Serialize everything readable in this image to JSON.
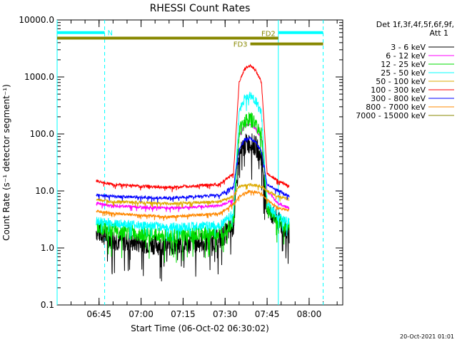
{
  "chart_data": {
    "type": "line",
    "title": "RHESSI Count Rates",
    "xlabel": "Start Time (06-Oct-02 06:30:02)",
    "ylabel": "Count Rate (s⁻¹ detector segment⁻¹)",
    "y_scale": "log",
    "ylim": [
      0.1,
      10000
    ],
    "y_ticks": [
      {
        "value": 0.1,
        "label": "0.1"
      },
      {
        "value": 1,
        "label": "1.0"
      },
      {
        "value": 10,
        "label": "10.0"
      },
      {
        "value": 100,
        "label": "100.0"
      },
      {
        "value": 1000,
        "label": "1000.0"
      },
      {
        "value": 10000,
        "label": "10000.0"
      }
    ],
    "x_range": [
      "06:30:02",
      "08:12:00"
    ],
    "x_ticks": [
      "06:45",
      "07:00",
      "07:15",
      "07:30",
      "07:45",
      "08:00"
    ],
    "legend": {
      "placement": "right",
      "title_line1": "Det 1f,3f,4f,5f,6f,9f,",
      "title_line2": "Att 1"
    },
    "series": [
      {
        "name": "3 - 6 keV",
        "color": "#000000",
        "values": [
          {
            "x": "06:44:00",
            "y": 2.0
          },
          {
            "x": "06:50:00",
            "y": 1.4
          },
          {
            "x": "07:10:00",
            "y": 1.1
          },
          {
            "x": "07:28:00",
            "y": 1.4
          },
          {
            "x": "07:33:00",
            "y": 2.5
          },
          {
            "x": "07:35:00",
            "y": 40
          },
          {
            "x": "07:37:00",
            "y": 65
          },
          {
            "x": "07:39:00",
            "y": 70
          },
          {
            "x": "07:41:00",
            "y": 60
          },
          {
            "x": "07:43:00",
            "y": 40
          },
          {
            "x": "07:45:00",
            "y": 5
          },
          {
            "x": "07:49:00",
            "y": 2.8
          },
          {
            "x": "07:53:00",
            "y": 1.8
          }
        ]
      },
      {
        "name": "6 - 12 keV",
        "color": "#ff00ff",
        "values": [
          {
            "x": "06:44:00",
            "y": 6.0
          },
          {
            "x": "06:50:00",
            "y": 5.5
          },
          {
            "x": "07:10:00",
            "y": 5.0
          },
          {
            "x": "07:28:00",
            "y": 5.5
          },
          {
            "x": "07:33:00",
            "y": 7
          },
          {
            "x": "07:35:00",
            "y": 95
          },
          {
            "x": "07:37:00",
            "y": 140
          },
          {
            "x": "07:39:00",
            "y": 150
          },
          {
            "x": "07:41:00",
            "y": 120
          },
          {
            "x": "07:43:00",
            "y": 80
          },
          {
            "x": "07:45:00",
            "y": 10
          },
          {
            "x": "07:49:00",
            "y": 6
          },
          {
            "x": "07:53:00",
            "y": 5
          }
        ]
      },
      {
        "name": "12 - 25 keV",
        "color": "#00dd00",
        "values": [
          {
            "x": "06:44:00",
            "y": 2.5
          },
          {
            "x": "06:50:00",
            "y": 2.0
          },
          {
            "x": "07:10:00",
            "y": 1.6
          },
          {
            "x": "07:28:00",
            "y": 1.8
          },
          {
            "x": "07:33:00",
            "y": 3
          },
          {
            "x": "07:35:00",
            "y": 110
          },
          {
            "x": "07:37:00",
            "y": 170
          },
          {
            "x": "07:39:00",
            "y": 180
          },
          {
            "x": "07:41:00",
            "y": 150
          },
          {
            "x": "07:43:00",
            "y": 100
          },
          {
            "x": "07:45:00",
            "y": 5
          },
          {
            "x": "07:49:00",
            "y": 3
          },
          {
            "x": "07:53:00",
            "y": 2.3
          }
        ]
      },
      {
        "name": "25 - 50 keV",
        "color": "#00ffff",
        "values": [
          {
            "x": "06:44:00",
            "y": 3.0
          },
          {
            "x": "06:50:00",
            "y": 2.7
          },
          {
            "x": "07:10:00",
            "y": 2.3
          },
          {
            "x": "07:28:00",
            "y": 2.5
          },
          {
            "x": "07:33:00",
            "y": 4
          },
          {
            "x": "07:35:00",
            "y": 250
          },
          {
            "x": "07:37:00",
            "y": 420
          },
          {
            "x": "07:39:00",
            "y": 470
          },
          {
            "x": "07:41:00",
            "y": 380
          },
          {
            "x": "07:43:00",
            "y": 220
          },
          {
            "x": "07:45:00",
            "y": 6
          },
          {
            "x": "07:49:00",
            "y": 3.5
          },
          {
            "x": "07:53:00",
            "y": 2.8
          }
        ]
      },
      {
        "name": "50 - 100 keV",
        "color": "#ddaa00",
        "values": [
          {
            "x": "06:44:00",
            "y": 7.0
          },
          {
            "x": "06:50:00",
            "y": 6.5
          },
          {
            "x": "07:10:00",
            "y": 6.0
          },
          {
            "x": "07:28:00",
            "y": 6.5
          },
          {
            "x": "07:33:00",
            "y": 8
          },
          {
            "x": "07:35:00",
            "y": 12
          },
          {
            "x": "07:39:00",
            "y": 13
          },
          {
            "x": "07:43:00",
            "y": 12
          },
          {
            "x": "07:45:00",
            "y": 10
          },
          {
            "x": "07:49:00",
            "y": 8
          },
          {
            "x": "07:53:00",
            "y": 7
          }
        ]
      },
      {
        "name": "100 - 300 keV",
        "color": "#ff0000",
        "values": [
          {
            "x": "06:44:00",
            "y": 15.0
          },
          {
            "x": "06:50:00",
            "y": 13.0
          },
          {
            "x": "07:10:00",
            "y": 11.5
          },
          {
            "x": "07:28:00",
            "y": 13
          },
          {
            "x": "07:33:00",
            "y": 20
          },
          {
            "x": "07:35:00",
            "y": 800
          },
          {
            "x": "07:37:00",
            "y": 1400
          },
          {
            "x": "07:39:00",
            "y": 1600
          },
          {
            "x": "07:41:00",
            "y": 1300
          },
          {
            "x": "07:43:00",
            "y": 800
          },
          {
            "x": "07:45:00",
            "y": 20
          },
          {
            "x": "07:49:00",
            "y": 15
          },
          {
            "x": "07:53:00",
            "y": 12
          }
        ]
      },
      {
        "name": "300 - 800 keV",
        "color": "#0000ff",
        "values": [
          {
            "x": "06:44:00",
            "y": 8.5
          },
          {
            "x": "06:50:00",
            "y": 8.0
          },
          {
            "x": "07:10:00",
            "y": 7.5
          },
          {
            "x": "07:28:00",
            "y": 8.5
          },
          {
            "x": "07:33:00",
            "y": 12
          },
          {
            "x": "07:35:00",
            "y": 55
          },
          {
            "x": "07:37:00",
            "y": 80
          },
          {
            "x": "07:39:00",
            "y": 85
          },
          {
            "x": "07:41:00",
            "y": 70
          },
          {
            "x": "07:43:00",
            "y": 50
          },
          {
            "x": "07:45:00",
            "y": 13
          },
          {
            "x": "07:49:00",
            "y": 10
          },
          {
            "x": "07:53:00",
            "y": 8
          }
        ]
      },
      {
        "name": "800 - 7000 keV",
        "color": "#ff8800",
        "values": [
          {
            "x": "06:44:00",
            "y": 4.5
          },
          {
            "x": "06:50:00",
            "y": 4.0
          },
          {
            "x": "07:10:00",
            "y": 3.5
          },
          {
            "x": "07:28:00",
            "y": 4
          },
          {
            "x": "07:33:00",
            "y": 6
          },
          {
            "x": "07:35:00",
            "y": 8
          },
          {
            "x": "07:39:00",
            "y": 10
          },
          {
            "x": "07:43:00",
            "y": 9
          },
          {
            "x": "07:45:00",
            "y": 7
          },
          {
            "x": "07:49:00",
            "y": 5
          },
          {
            "x": "07:53:00",
            "y": 4.5
          }
        ]
      },
      {
        "name": "7000 - 15000 keV",
        "color": "#888800",
        "values": []
      }
    ],
    "overlays": [
      {
        "label": "N",
        "color": "#00ffff",
        "from": "06:30:02",
        "to": "06:47:00",
        "y": 6000
      },
      {
        "label": "",
        "color": "#00ffff",
        "from": "07:49:00",
        "to": "08:05:00",
        "y": 6000
      },
      {
        "label": "FD2",
        "color": "#888800",
        "from": "06:30:02",
        "to": "07:49:00",
        "y": 4800
      },
      {
        "label": "FD3",
        "color": "#888800",
        "from": "07:39:00",
        "to": "08:05:00",
        "y": 3800
      }
    ],
    "vlines": [
      {
        "x": "06:30:02",
        "style": "solid",
        "color": "#00ffff"
      },
      {
        "x": "06:47:00",
        "style": "dashed",
        "color": "#00ffff"
      },
      {
        "x": "07:49:00",
        "style": "solid",
        "color": "#00ffff"
      },
      {
        "x": "08:05:00",
        "style": "dashed",
        "color": "#00ffff"
      }
    ]
  },
  "footer": {
    "timestamp": "20-Oct-2021 01:01"
  }
}
